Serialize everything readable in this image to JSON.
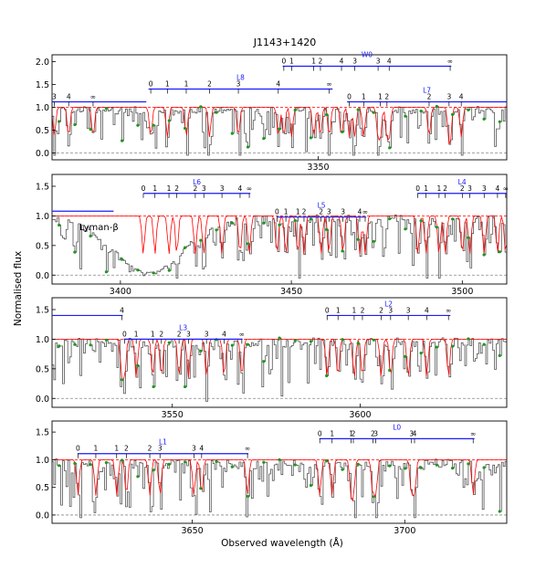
{
  "figure": {
    "title": "J1143+1420",
    "xlabel": "Observed wavelength (Å)",
    "ylabel": "Normalised flux"
  },
  "colors": {
    "data": "#555555",
    "model": "#ff0000",
    "continuum": "#ff0000",
    "markers": "#1a9a1a",
    "series": "#1a1aff",
    "zero": "#888888"
  },
  "chart_data": [
    {
      "type": "line",
      "panel": 1,
      "xlim": [
        3326,
        3367
      ],
      "ylim": [
        -0.15,
        2.15
      ],
      "xticks": [
        3350
      ],
      "yticks": [
        0.0,
        0.5,
        1.0,
        1.5,
        2.0
      ],
      "ytick_labels": [
        "0.0",
        "0.5",
        "1.0",
        "1.5",
        "2.0"
      ],
      "series": [
        {
          "name": "",
          "y": 1.12,
          "x0": 3326.0,
          "x1": 3334.5,
          "ticks": [
            3326.2,
            3327.5,
            3329.7
          ],
          "labels": [
            "3",
            "4",
            "∞"
          ]
        },
        {
          "name": "L8",
          "y": 1.4,
          "x0": 3334.7,
          "x1": 3351.3,
          "ticks": [
            3334.9,
            3336.4,
            3338.1,
            3340.2,
            3342.8,
            3346.4,
            3351.0
          ],
          "labels": [
            "0",
            "1",
            "1",
            "2",
            "3",
            "4",
            "∞"
          ]
        },
        {
          "name": "W0",
          "y": 1.9,
          "x0": 3346.8,
          "x1": 3362.0,
          "ticks": [
            3346.9,
            3347.6,
            3349.6,
            3350.2,
            3352.1,
            3353.3,
            3355.4,
            3356.4,
            3361.9
          ],
          "labels": [
            "0",
            "1",
            "1",
            "2",
            "4",
            "3",
            "3",
            "4",
            "∞"
          ]
        },
        {
          "name": "L7",
          "y": 1.12,
          "x0": 3352.6,
          "x1": 3367.0,
          "ticks": [
            3352.8,
            3354.1,
            3355.6,
            3356.2,
            3360.0,
            3361.8,
            3362.9
          ],
          "labels": [
            "0",
            "1",
            "1",
            "2",
            "2",
            "3",
            "4"
          ]
        }
      ]
    },
    {
      "type": "line",
      "panel": 2,
      "xlim": [
        3380,
        3513
      ],
      "ylim": [
        -0.15,
        1.7
      ],
      "xticks": [
        3400,
        3450,
        3500
      ],
      "yticks": [
        0.0,
        0.5,
        1.0,
        1.5
      ],
      "ytick_labels": [
        "0.0",
        "0.5",
        "1.0",
        "1.5"
      ],
      "annotations": [
        {
          "text": "Lyman-β",
          "x": 3388,
          "y": 0.76
        }
      ],
      "series": [
        {
          "name": "",
          "y": 1.08,
          "x0": 3380.0,
          "x1": 3398.0,
          "ticks": [],
          "labels": []
        },
        {
          "name": "L6",
          "y": 1.38,
          "x0": 3406.7,
          "x1": 3438.0,
          "ticks": [
            3406.7,
            3410.1,
            3414.2,
            3416.5,
            3421.9,
            3424.4,
            3429.7,
            3435.0,
            3437.7
          ],
          "labels": [
            "0",
            "1",
            "1",
            "2",
            "2",
            "3",
            "3",
            "4",
            "∞"
          ]
        },
        {
          "name": "L5",
          "y": 0.98,
          "x0": 3445.7,
          "x1": 3471.9,
          "ticks": [
            3445.8,
            3448.4,
            3451.9,
            3453.7,
            3458.7,
            3461.0,
            3465.1,
            3470.0,
            3471.6
          ],
          "labels": [
            "0",
            "1",
            "1",
            "2",
            "2",
            "3",
            "3",
            "4",
            "∞"
          ]
        },
        {
          "name": "L4",
          "y": 1.38,
          "x0": 3486.9,
          "x1": 3513.0,
          "ticks": [
            3487.0,
            3489.4,
            3493.2,
            3495.0,
            3500.0,
            3502.2,
            3506.4,
            3510.3,
            3512.7
          ],
          "labels": [
            "0",
            "1",
            "1",
            "2",
            "2",
            "3",
            "3",
            "4",
            "∞"
          ]
        }
      ]
    },
    {
      "type": "line",
      "panel": 3,
      "xlim": [
        3518,
        3639
      ],
      "ylim": [
        -0.15,
        1.7
      ],
      "xticks": [
        3550,
        3600
      ],
      "yticks": [
        0.0,
        0.5,
        1.0,
        1.5
      ],
      "ytick_labels": [
        "0.0",
        "0.5",
        "1.0",
        "1.5"
      ],
      "series": [
        {
          "name": "",
          "y": 1.4,
          "x0": 3518.0,
          "x1": 3536.8,
          "ticks": [
            3536.6
          ],
          "labels": [
            "4"
          ]
        },
        {
          "name": "L3",
          "y": 1.0,
          "x0": 3537.1,
          "x1": 3568.7,
          "ticks": [
            3537.3,
            3540.4,
            3544.8,
            3547.1,
            3551.8,
            3554.3,
            3559.1,
            3563.8,
            3568.5
          ],
          "labels": [
            "0",
            "1",
            "1",
            "2",
            "2",
            "3",
            "3",
            "4",
            "∞"
          ]
        },
        {
          "name": "L2",
          "y": 1.4,
          "x0": 3591.1,
          "x1": 3624.0,
          "ticks": [
            3591.2,
            3594.1,
            3598.4,
            3600.6,
            3605.6,
            3608.1,
            3612.8,
            3617.7,
            3623.5
          ],
          "labels": [
            "0",
            "1",
            "1",
            "2",
            "2",
            "3",
            "3",
            "4",
            "∞"
          ]
        }
      ]
    },
    {
      "type": "line",
      "panel": 4,
      "xlim": [
        3617,
        3724
      ],
      "ylim": [
        -0.15,
        1.7
      ],
      "xticks": [
        3650,
        3700
      ],
      "yticks": [
        0.0,
        0.5,
        1.0,
        1.5
      ],
      "ytick_labels": [
        "0.0",
        "0.5",
        "1.0",
        "1.5"
      ],
      "series": [
        {
          "name": "L1",
          "y": 1.11,
          "x0": 3623.0,
          "x1": 3663.2,
          "ticks": [
            3623.1,
            3627.3,
            3632.2,
            3634.5,
            3640.0,
            3642.4,
            3650.4,
            3652.2,
            3663.0
          ],
          "labels": [
            "0",
            "1",
            "1",
            "2",
            "2",
            "3",
            "3",
            "4",
            "∞"
          ]
        },
        {
          "name": "L0",
          "y": 1.38,
          "x0": 3679.9,
          "x1": 3716.4,
          "ticks": [
            3680.0,
            3682.9,
            3687.4,
            3687.9,
            3692.5,
            3693.2,
            3701.6,
            3702.3,
            3716.1
          ],
          "labels": [
            "0",
            "1",
            "1",
            "2",
            "2",
            "3",
            "3",
            "4",
            "∞"
          ]
        }
      ]
    }
  ]
}
